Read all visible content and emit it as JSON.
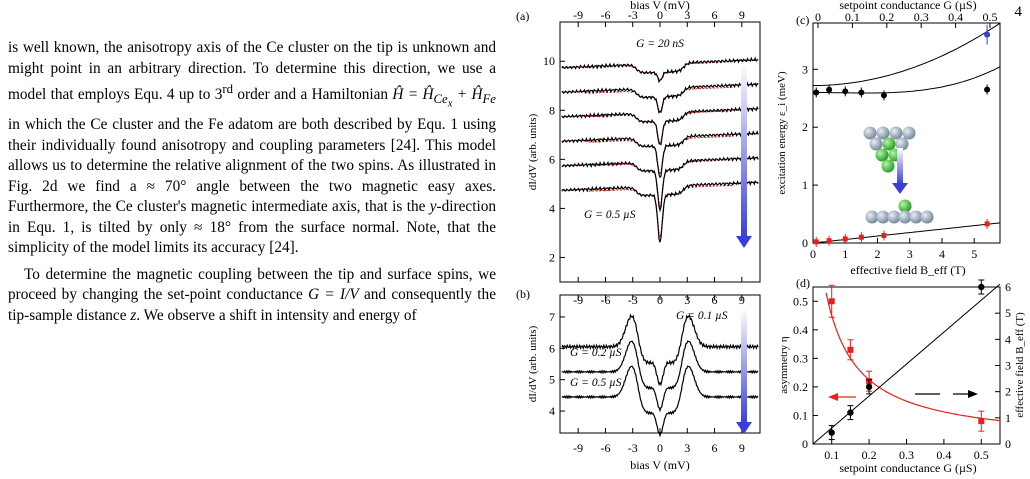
{
  "page_number": "4",
  "paragraphs": {
    "p1": {
      "a": "is well known, the anisotropy axis of the Ce cluster on the tip is unknown and might point in an arbitrary direction. To determine this direction, we use a model that employs Equ. 4 up to 3",
      "sup": "rd",
      "b": " order and a Hamiltonian ",
      "math": "Ĥ = Ĥ",
      "sub1": "Ce",
      "subsub": "x",
      "plus": " + Ĥ",
      "sub2": "Fe",
      "c": " in which the Ce cluster and the Fe adatom are both described by Equ. 1 using their individually found anisotropy and coupling parameters [24]. This model allows us to determine the relative alignment of the two spins. As illustrated in Fig. 2d we find a ≈ 70° angle between the two magnetic easy axes. Furthermore, the Ce cluster's magnetic intermediate axis, that is the ",
      "yvar": "y",
      "d": "-direction in Equ. 1, is tilted by only ≈ 18° from the surface normal. Note, that the simplicity of the model limits its accuracy [24]."
    },
    "p2": {
      "a": "To determine the magnetic coupling between the tip and surface spins, we proceed by changing the set-point conductance ",
      "math": "G = I/V",
      "b": " and consequently the tip-sample distance ",
      "zvar": "z",
      "c": ". We observe a shift in intensity and energy of"
    }
  },
  "figure": {
    "panel_a": {
      "tag": "(a)",
      "top_xlabel": "bias V (mV)",
      "ylabel": "dI/dV (arb. units)",
      "xticks": [
        "-9",
        "-6",
        "-3",
        "0",
        "3",
        "6",
        "9"
      ],
      "yticks": [
        "2",
        "4",
        "6",
        "8",
        "10"
      ],
      "label_top": "G = 20 nS",
      "label_bottom": "G = 0.5 µS"
    },
    "panel_b": {
      "tag": "(b)",
      "xlabel": "bias V (mV)",
      "ylabel": "dI/dV (arb. units)",
      "xticks": [
        "-9",
        "-6",
        "-3",
        "0",
        "3",
        "6",
        "9"
      ],
      "yticks": [
        "4",
        "5",
        "6",
        "7"
      ],
      "curve_labels": [
        "G = 0.1 µS",
        "G = 0.2 µS",
        "G = 0.5 µS"
      ]
    },
    "panel_c": {
      "tag": "(c)",
      "top_xlabel": "setpoint conductance G (µS)",
      "top_xticks": [
        "0",
        "0.1",
        "0.2",
        "0.3",
        "0.4",
        "0.5"
      ],
      "xlabel": "effective field B_eff (T)",
      "xticks": [
        "0",
        "1",
        "2",
        "3",
        "4",
        "5"
      ],
      "ylabel": "excitation energy ε_i (meV)",
      "yticks": [
        "0",
        "1",
        "2",
        "3"
      ]
    },
    "panel_d": {
      "tag": "(d)",
      "xlabel": "setpoint conductance G (µS)",
      "xticks": [
        "0.1",
        "0.2",
        "0.3",
        "0.4",
        "0.5"
      ],
      "ylabel_left": "asymmetry η",
      "yticks_left": [
        "0",
        "0.1",
        "0.2",
        "0.3",
        "0.4",
        "0.5"
      ],
      "ylabel_right": "effective field B_eff (T)",
      "yticks_right": [
        "0",
        "1",
        "2",
        "3",
        "4",
        "5",
        "6"
      ]
    },
    "colors": {
      "fit_red": "#e8201c",
      "arrow_blue": "#3a3fd9",
      "atom_grey": "#8fa3b8",
      "atom_green": "#2fb82f"
    }
  },
  "chart_data": [
    {
      "panel": "c",
      "type": "scatter",
      "xlabel": "effective field B_eff (T)",
      "ylabel": "excitation energy ε_i (meV)",
      "xlim": [
        0,
        5.8
      ],
      "ylim": [
        0,
        3.8
      ],
      "series": [
        {
          "x": [
            0.1,
            0.5,
            1.0,
            1.5,
            2.2,
            5.4
          ],
          "values": [
            2.6,
            2.65,
            2.62,
            2.6,
            2.55,
            2.65
          ]
        },
        {
          "x": [
            0.1,
            0.5,
            1.0,
            1.5,
            2.2,
            5.4
          ],
          "values": [
            0.02,
            0.04,
            0.07,
            0.1,
            0.13,
            0.33
          ]
        },
        {
          "x": [
            5.4
          ],
          "values": [
            3.6
          ]
        }
      ]
    },
    {
      "panel": "d",
      "type": "scatter",
      "xlabel": "setpoint conductance G (µS)",
      "ylabel": "asymmetry η",
      "xlim": [
        0.05,
        0.55
      ],
      "ylim": [
        0,
        0.55
      ],
      "series": [
        {
          "x": [
            0.1,
            0.15,
            0.2,
            0.5
          ],
          "values": [
            0.5,
            0.33,
            0.22,
            0.08
          ]
        },
        {
          "x": [
            0.1,
            0.15,
            0.2,
            0.5
          ],
          "values": [
            0.04,
            0.11,
            0.2,
            0.55
          ]
        }
      ]
    }
  ]
}
